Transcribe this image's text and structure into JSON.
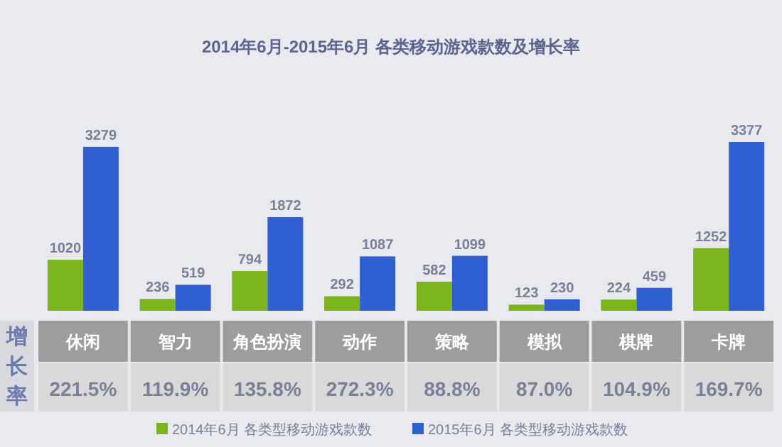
{
  "chart_data": {
    "type": "bar",
    "title": "2014年6月-2015年6月 各类移动游戏款数及增长率",
    "categories": [
      "休闲",
      "智力",
      "角色扮演",
      "动作",
      "策略",
      "模拟",
      "棋牌",
      "卡牌"
    ],
    "series": [
      {
        "name": "2014年6月 各类型移动游戏款数",
        "color": "#7ab51d",
        "values": [
          1020,
          236,
          794,
          292,
          582,
          123,
          224,
          1252
        ]
      },
      {
        "name": "2015年6月 各类型移动游戏款数",
        "color": "#2f5fd0",
        "values": [
          3279,
          519,
          1872,
          1087,
          1099,
          230,
          459,
          3377
        ]
      }
    ],
    "data_labels": true,
    "legend": "bottom",
    "ylabel": "增长率",
    "annotations": [
      "221.5%",
      "119.9%",
      "135.8%",
      "272.3%",
      "88.8%",
      "87.0%",
      "104.9%",
      "169.7%"
    ]
  }
}
